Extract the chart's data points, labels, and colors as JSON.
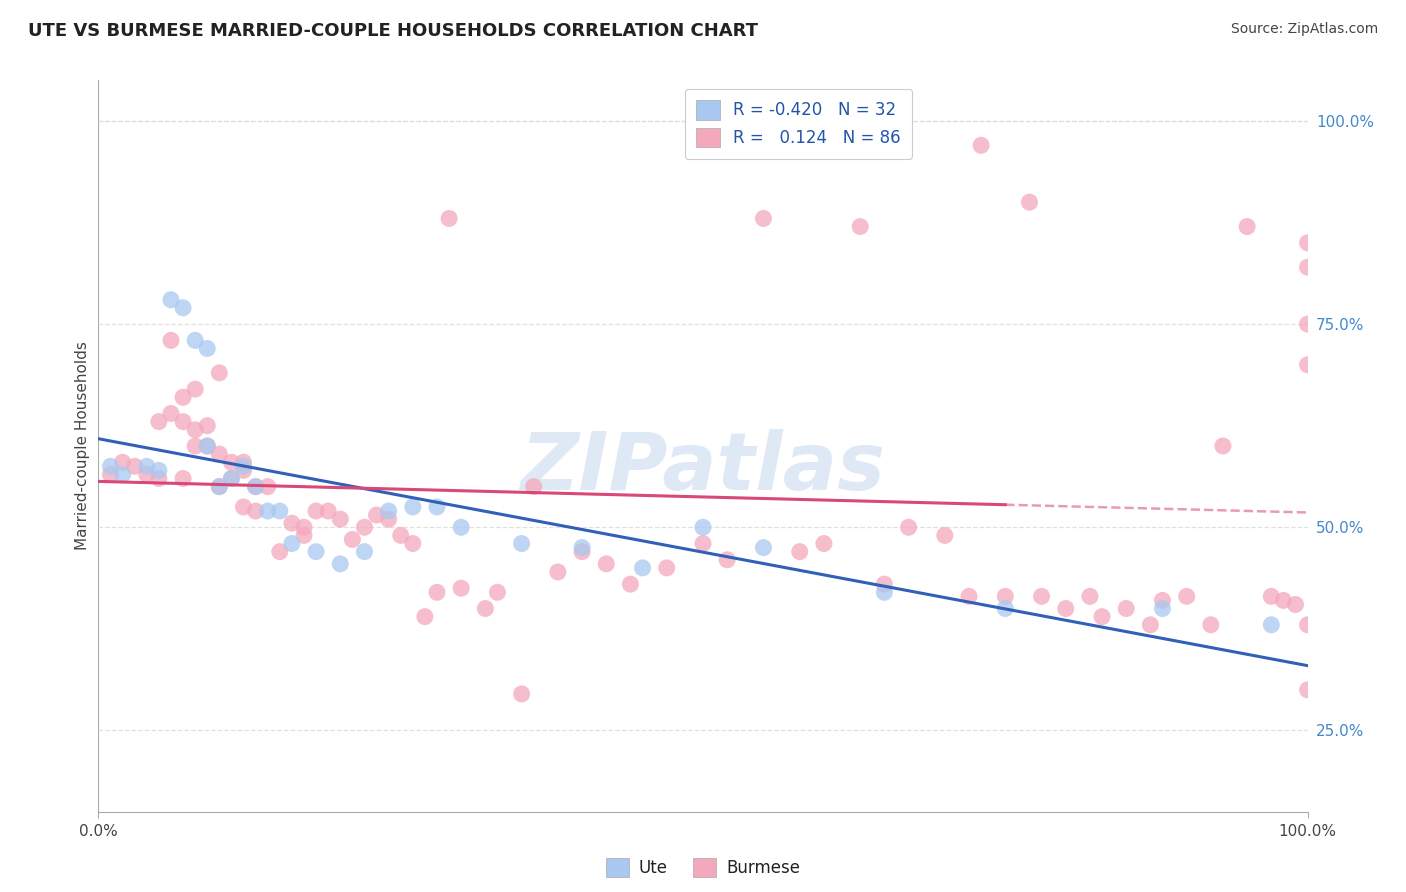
{
  "title": "UTE VS BURMESE MARRIED-COUPLE HOUSEHOLDS CORRELATION CHART",
  "source_text": "Source: ZipAtlas.com",
  "ylabel": "Married-couple Households",
  "xlim": [
    0.0,
    1.0
  ],
  "ylim": [
    0.15,
    1.05
  ],
  "right_yticks": [
    0.25,
    0.5,
    0.75,
    1.0
  ],
  "right_yticklabels": [
    "25.0%",
    "50.0%",
    "75.0%",
    "100.0%"
  ],
  "watermark": "ZIPatlas",
  "legend_ute_r": "-0.420",
  "legend_ute_n": "32",
  "legend_burmese_r": "0.124",
  "legend_burmese_n": "86",
  "ute_color": "#A8C8F0",
  "burmese_color": "#F4A8BC",
  "ute_line_color": "#3060B8",
  "burmese_line_color": "#D84878",
  "title_fontsize": 13,
  "background_color": "#FFFFFF",
  "grid_color": "#DDDDDD",
  "right_label_color": "#4488CC",
  "ute_x": [
    0.01,
    0.02,
    0.04,
    0.05,
    0.06,
    0.07,
    0.08,
    0.09,
    0.09,
    0.1,
    0.11,
    0.12,
    0.13,
    0.14,
    0.15,
    0.16,
    0.18,
    0.2,
    0.22,
    0.24,
    0.26,
    0.28,
    0.3,
    0.35,
    0.4,
    0.45,
    0.5,
    0.55,
    0.65,
    0.75,
    0.88,
    0.97
  ],
  "ute_y": [
    0.575,
    0.565,
    0.575,
    0.57,
    0.78,
    0.77,
    0.73,
    0.72,
    0.6,
    0.55,
    0.56,
    0.575,
    0.55,
    0.52,
    0.52,
    0.48,
    0.47,
    0.455,
    0.47,
    0.52,
    0.525,
    0.525,
    0.5,
    0.48,
    0.475,
    0.45,
    0.5,
    0.475,
    0.42,
    0.4,
    0.4,
    0.38
  ],
  "burmese_x": [
    0.01,
    0.02,
    0.03,
    0.04,
    0.05,
    0.05,
    0.06,
    0.06,
    0.07,
    0.07,
    0.07,
    0.08,
    0.08,
    0.08,
    0.09,
    0.09,
    0.1,
    0.1,
    0.1,
    0.11,
    0.11,
    0.12,
    0.12,
    0.12,
    0.13,
    0.13,
    0.14,
    0.15,
    0.16,
    0.17,
    0.17,
    0.18,
    0.19,
    0.2,
    0.21,
    0.22,
    0.23,
    0.24,
    0.25,
    0.26,
    0.27,
    0.28,
    0.29,
    0.3,
    0.32,
    0.33,
    0.35,
    0.36,
    0.38,
    0.4,
    0.42,
    0.44,
    0.47,
    0.5,
    0.52,
    0.55,
    0.58,
    0.6,
    0.63,
    0.65,
    0.67,
    0.7,
    0.72,
    0.73,
    0.75,
    0.77,
    0.78,
    0.8,
    0.82,
    0.83,
    0.85,
    0.87,
    0.88,
    0.9,
    0.92,
    0.93,
    0.95,
    0.97,
    0.98,
    0.99,
    1.0,
    1.0,
    1.0,
    1.0,
    1.0,
    1.0
  ],
  "burmese_y": [
    0.565,
    0.58,
    0.575,
    0.565,
    0.56,
    0.63,
    0.64,
    0.73,
    0.56,
    0.66,
    0.63,
    0.62,
    0.67,
    0.6,
    0.625,
    0.6,
    0.59,
    0.55,
    0.69,
    0.56,
    0.58,
    0.525,
    0.57,
    0.58,
    0.52,
    0.55,
    0.55,
    0.47,
    0.505,
    0.49,
    0.5,
    0.52,
    0.52,
    0.51,
    0.485,
    0.5,
    0.515,
    0.51,
    0.49,
    0.48,
    0.39,
    0.42,
    0.88,
    0.425,
    0.4,
    0.42,
    0.295,
    0.55,
    0.445,
    0.47,
    0.455,
    0.43,
    0.45,
    0.48,
    0.46,
    0.88,
    0.47,
    0.48,
    0.87,
    0.43,
    0.5,
    0.49,
    0.415,
    0.97,
    0.415,
    0.9,
    0.415,
    0.4,
    0.415,
    0.39,
    0.4,
    0.38,
    0.41,
    0.415,
    0.38,
    0.6,
    0.87,
    0.415,
    0.41,
    0.405,
    0.85,
    0.82,
    0.75,
    0.7,
    0.38,
    0.3
  ]
}
